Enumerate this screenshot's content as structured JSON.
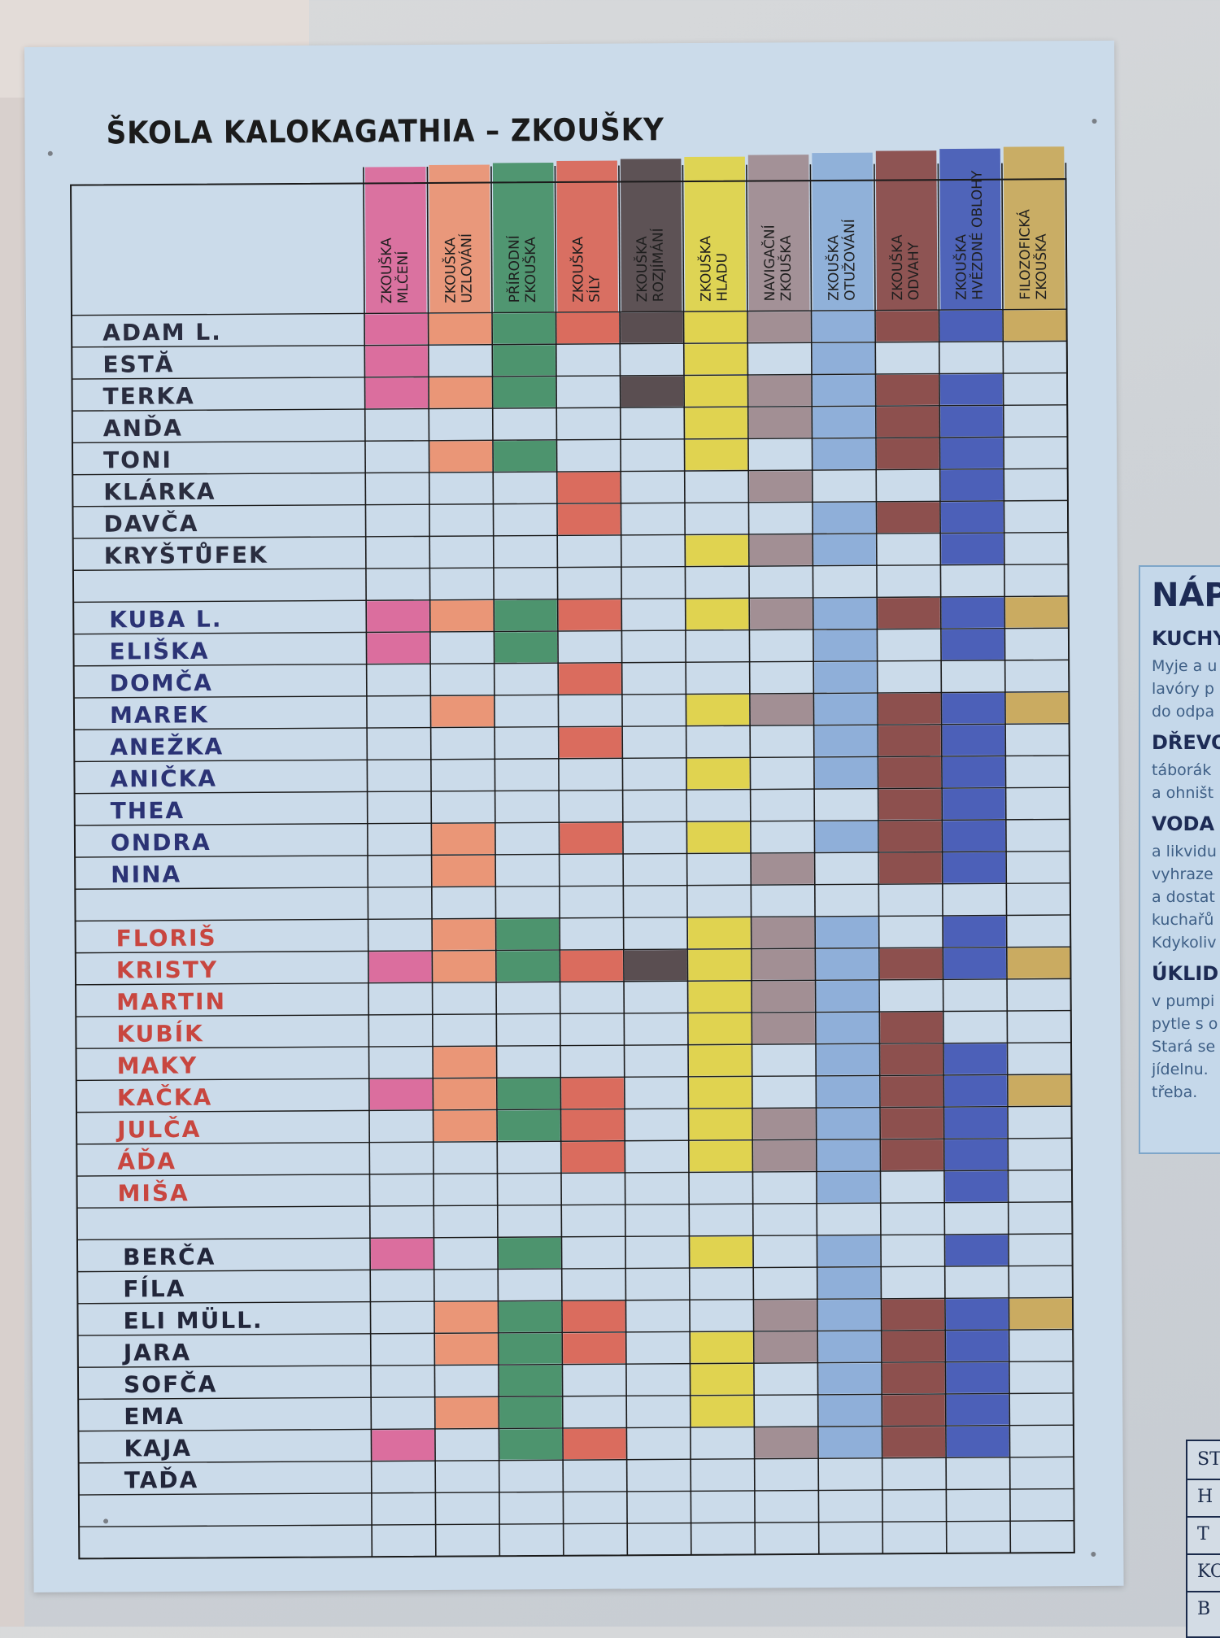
{
  "title": "ŠKOLA KALOKAGATHIA – ZKOUŠKY",
  "columns": [
    {
      "label": "ZKOUŠKA MLČENÍ",
      "lines": [
        "ZKOUŠKA",
        "MLČENÍ"
      ],
      "color": "#dd5f93"
    },
    {
      "label": "ZKOUŠKA UZLOVÁNÍ",
      "lines": [
        "ZKOUŠKA",
        "UZLOVÁNÍ"
      ],
      "color": "#ee8c67"
    },
    {
      "label": "PŘÍRODNÍ ZKOUŠKA",
      "lines": [
        "PŘÍRODNÍ",
        "ZKOUŠKA"
      ],
      "color": "#3b8a5c"
    },
    {
      "label": "ZKOUŠKA SÍLY",
      "lines": [
        "ZKOUŠKA",
        "SÍLY"
      ],
      "color": "#dc5c4a"
    },
    {
      "label": "ZKOUŠKA ROZJÍMÁNÍ",
      "lines": [
        "ZKOUŠKA",
        "ROZJÍMÁNÍ"
      ],
      "color": "#4a3a3b"
    },
    {
      "label": "ZKOUŠKA HLADU",
      "lines": [
        "ZKOUŠKA",
        "HLADU"
      ],
      "color": "#e2d23a"
    },
    {
      "label": "NAVIGAČNÍ ZKOUŠKA",
      "lines": [
        "NAVIGAČNÍ",
        "ZKOUŠKA"
      ],
      "color": "#9c8488"
    },
    {
      "label": "ZKOUŠKA OTUŽOVÁNÍ",
      "lines": [
        "ZKOUŠKA",
        "OTUŽOVÁNÍ"
      ],
      "color": "#86a9d6"
    },
    {
      "label": "ZKOUŠKA ODVAHY",
      "lines": [
        "ZKOUŠKA",
        "ODVAHY"
      ],
      "color": "#843c38"
    },
    {
      "label": "ZKOUŠKA HVĚZDNÉ OBLOHY",
      "lines": [
        "ZKOUŠKA",
        "HVĚZDNÉ OBLOHY"
      ],
      "color": "#3a4fb0"
    },
    {
      "label": "FILOZOFICKÁ ZKOUŠKA",
      "lines": [
        "FILOZOFICKÁ",
        "ZKOUŠKA"
      ],
      "color": "#c9a44d"
    }
  ],
  "groups": [
    {
      "ink": "#2a2d3f",
      "rows": [
        {
          "name": "ADAM L.",
          "marks": [
            1,
            1,
            1,
            1,
            1,
            1,
            1,
            1,
            1,
            1,
            1
          ]
        },
        {
          "name": "ESTĂ",
          "marks": [
            1,
            0,
            1,
            0,
            0,
            1,
            0,
            1,
            0,
            0,
            0
          ]
        },
        {
          "name": "TERKA",
          "marks": [
            1,
            1,
            1,
            0,
            1,
            1,
            1,
            1,
            1,
            1,
            0
          ]
        },
        {
          "name": "ANĎA",
          "marks": [
            0,
            0,
            0,
            0,
            0,
            1,
            1,
            1,
            1,
            1,
            0
          ]
        },
        {
          "name": "TONI",
          "marks": [
            0,
            1,
            1,
            0,
            0,
            1,
            0,
            1,
            1,
            1,
            0
          ]
        },
        {
          "name": "KLÁRKA",
          "marks": [
            0,
            0,
            0,
            1,
            0,
            0,
            1,
            0,
            0,
            1,
            0
          ]
        },
        {
          "name": "DAVČA",
          "marks": [
            0,
            0,
            0,
            1,
            0,
            0,
            0,
            1,
            1,
            1,
            0
          ]
        },
        {
          "name": "KRYŠTŮFEK",
          "marks": [
            0,
            0,
            0,
            0,
            0,
            1,
            1,
            1,
            0,
            1,
            0
          ]
        },
        {
          "name": "",
          "marks": [
            0,
            0,
            0,
            0,
            0,
            0,
            0,
            0,
            0,
            0,
            0
          ]
        }
      ]
    },
    {
      "ink": "#2b3375",
      "rows": [
        {
          "name": "KUBA L.",
          "marks": [
            1,
            1,
            1,
            1,
            0,
            1,
            1,
            1,
            1,
            1,
            1
          ]
        },
        {
          "name": "ELIŠKA",
          "marks": [
            1,
            0,
            1,
            0,
            0,
            0,
            0,
            1,
            0,
            1,
            0
          ]
        },
        {
          "name": "DOMČA",
          "marks": [
            0,
            0,
            0,
            1,
            0,
            0,
            0,
            1,
            0,
            0,
            0
          ]
        },
        {
          "name": "MAREK",
          "marks": [
            0,
            1,
            0,
            0,
            0,
            1,
            1,
            1,
            1,
            1,
            1
          ]
        },
        {
          "name": "ANEŽKA",
          "marks": [
            0,
            0,
            0,
            1,
            0,
            0,
            0,
            1,
            1,
            1,
            0
          ]
        },
        {
          "name": "ANIČKA",
          "marks": [
            0,
            0,
            0,
            0,
            0,
            1,
            0,
            1,
            1,
            1,
            0
          ]
        },
        {
          "name": "THEA",
          "marks": [
            0,
            0,
            0,
            0,
            0,
            0,
            0,
            0,
            1,
            1,
            0
          ]
        },
        {
          "name": "ONDRA",
          "marks": [
            0,
            1,
            0,
            1,
            0,
            1,
            0,
            1,
            1,
            1,
            0
          ]
        },
        {
          "name": "NINA",
          "marks": [
            0,
            1,
            0,
            0,
            0,
            0,
            1,
            0,
            1,
            1,
            0
          ]
        },
        {
          "name": "",
          "marks": [
            0,
            0,
            0,
            0,
            0,
            0,
            0,
            0,
            0,
            0,
            0
          ]
        }
      ]
    },
    {
      "ink": "#c8463f",
      "rows": [
        {
          "name": "FLORIŠ",
          "marks": [
            0,
            1,
            1,
            0,
            0,
            1,
            1,
            1,
            0,
            1,
            0
          ]
        },
        {
          "name": "KRISTY",
          "marks": [
            1,
            1,
            1,
            1,
            1,
            1,
            1,
            1,
            1,
            1,
            1
          ]
        },
        {
          "name": "MARTIN",
          "marks": [
            0,
            0,
            0,
            0,
            0,
            1,
            1,
            1,
            0,
            0,
            0
          ]
        },
        {
          "name": "KUBÍK",
          "marks": [
            0,
            0,
            0,
            0,
            0,
            1,
            1,
            1,
            1,
            0,
            0
          ]
        },
        {
          "name": "MAKY",
          "marks": [
            0,
            1,
            0,
            0,
            0,
            1,
            0,
            1,
            1,
            1,
            0
          ]
        },
        {
          "name": "KAČKA",
          "marks": [
            1,
            1,
            1,
            1,
            0,
            1,
            0,
            1,
            1,
            1,
            1
          ]
        },
        {
          "name": "JULČA",
          "marks": [
            0,
            1,
            1,
            1,
            0,
            1,
            1,
            1,
            1,
            1,
            0
          ]
        },
        {
          "name": "ÁĎA",
          "marks": [
            0,
            0,
            0,
            1,
            0,
            1,
            1,
            1,
            1,
            1,
            0
          ]
        },
        {
          "name": "MIŠA",
          "marks": [
            0,
            0,
            0,
            0,
            0,
            0,
            0,
            1,
            0,
            1,
            0
          ]
        },
        {
          "name": "",
          "marks": [
            0,
            0,
            0,
            0,
            0,
            0,
            0,
            0,
            0,
            0,
            0
          ]
        }
      ]
    },
    {
      "ink": "#22263a",
      "rows": [
        {
          "name": "BERČA",
          "marks": [
            1,
            0,
            1,
            0,
            0,
            1,
            0,
            1,
            0,
            1,
            0
          ]
        },
        {
          "name": "FÍLA",
          "marks": [
            0,
            0,
            0,
            0,
            0,
            0,
            0,
            1,
            0,
            0,
            0
          ]
        },
        {
          "name": "ELI MÜLL.",
          "marks": [
            0,
            1,
            1,
            1,
            0,
            0,
            1,
            1,
            1,
            1,
            1
          ]
        },
        {
          "name": "JARA",
          "marks": [
            0,
            1,
            1,
            1,
            0,
            1,
            1,
            1,
            1,
            1,
            0
          ]
        },
        {
          "name": "SOFČA",
          "marks": [
            0,
            0,
            1,
            0,
            0,
            1,
            0,
            1,
            1,
            1,
            0
          ]
        },
        {
          "name": "EMA",
          "marks": [
            0,
            1,
            1,
            0,
            0,
            1,
            0,
            1,
            1,
            1,
            0
          ]
        },
        {
          "name": "KAJA",
          "marks": [
            1,
            0,
            1,
            1,
            0,
            0,
            1,
            1,
            1,
            1,
            0
          ]
        },
        {
          "name": "TAĎA",
          "marks": [
            0,
            0,
            0,
            0,
            0,
            0,
            0,
            0,
            0,
            0,
            0
          ]
        },
        {
          "name": "",
          "marks": [
            0,
            0,
            0,
            0,
            0,
            0,
            0,
            0,
            0,
            0,
            0
          ]
        },
        {
          "name": "",
          "marks": [
            0,
            0,
            0,
            0,
            0,
            0,
            0,
            0,
            0,
            0,
            0
          ]
        }
      ]
    }
  ],
  "side_sheet": {
    "heading": "NÁP",
    "sections": [
      {
        "title": "KUCHY",
        "lines": [
          "Myje a u",
          "lavóry p",
          "do odpa"
        ]
      },
      {
        "title": "DŘEVO",
        "lines": [
          "táborák",
          "a ohništ"
        ]
      },
      {
        "title": "VODA",
        "lines": [
          "a likvidu",
          "vyhraze",
          "a dostat",
          "kuchařů",
          "Kdykoliv"
        ]
      },
      {
        "title": "ÚKLID",
        "lines": [
          "v pumpi",
          "pytle s o",
          "Stará se",
          "jídelnu.",
          "třeba."
        ]
      }
    ]
  },
  "side_table": {
    "rows": [
      "ST",
      "H",
      "T",
      "KO",
      "B"
    ]
  }
}
